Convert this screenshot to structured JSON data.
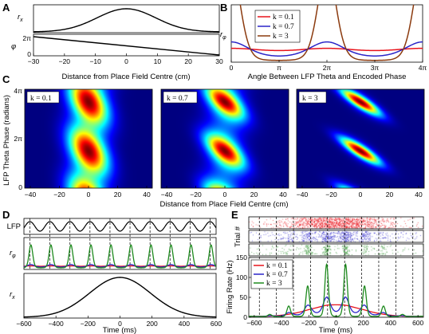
{
  "chart_data": [
    {
      "id": "A",
      "panel_label": "A",
      "type": "line",
      "top_ylabel": "r",
      "top_ylabel_sub": "x",
      "bottom_ylabel": "φ",
      "bottom_yticks": [
        "2π",
        "0"
      ],
      "xlabel": "Distance from Place Field Centre (cm)",
      "xlim": [
        -30,
        30
      ],
      "xticks": [
        "−30",
        "−20",
        "−10",
        "0",
        "10",
        "20",
        "30"
      ],
      "rx_curve": {
        "x": [
          -30,
          -20,
          -10,
          0,
          10,
          20,
          30
        ],
        "y": [
          0.02,
          0.14,
          0.61,
          1.0,
          0.61,
          0.14,
          0.02
        ]
      },
      "phi_curve": {
        "x": [
          -30,
          30
        ],
        "y_radians": [
          6.283,
          0
        ]
      }
    },
    {
      "id": "B",
      "panel_label": "B",
      "type": "line",
      "ylabel": "r",
      "ylabel_sub": "φ",
      "xlabel": "Angle Between LFP Theta and Encoded Phase",
      "xlim": [
        0,
        12.566
      ],
      "xticks": [
        "0",
        "π",
        "2π",
        "3π",
        "4π"
      ],
      "legend_position": "top-left",
      "series": [
        {
          "name": "k = 0.1",
          "color": "#e8131b",
          "kappa": 0.1
        },
        {
          "name": "k = 0.7",
          "color": "#2a24c8",
          "kappa": 0.7
        },
        {
          "name": "k = 3",
          "color": "#8b3a0e",
          "kappa": 3
        }
      ]
    },
    {
      "id": "C",
      "panel_label": "C",
      "type": "heatmap",
      "ylabel": "LFP Theta Phase (radians)",
      "yticks": [
        "4π",
        "2π",
        "0"
      ],
      "xlabel": "Distance from Place Field Centre (cm)",
      "xticks": [
        "−40",
        "−20",
        "0",
        "20",
        "40"
      ],
      "subplots": [
        {
          "label": "k = 0.1",
          "kappa": 0.1
        },
        {
          "label": "k = 0.7",
          "kappa": 0.7
        },
        {
          "label": "k = 3",
          "kappa": 3
        }
      ]
    },
    {
      "id": "D",
      "panel_label": "D",
      "type": "line",
      "xlabel": "Time (ms)",
      "xlim": [
        -600,
        600
      ],
      "xticks": [
        "−600",
        "−400",
        "−200",
        "0",
        "200",
        "400",
        "600"
      ],
      "lfp_ylabel": "LFP",
      "rphi_ylabel": "r",
      "rphi_ylabel_sub": "φ",
      "rx_ylabel": "r",
      "rx_ylabel_sub": "x",
      "theta_cycle_ms": 125,
      "series": [
        {
          "name": "k = 0.1",
          "color": "#e8131b",
          "kappa": 0.1
        },
        {
          "name": "k = 0.7",
          "color": "#2a24c8",
          "kappa": 0.7
        },
        {
          "name": "k = 3",
          "color": "#1e8a1e",
          "kappa": 3
        }
      ]
    },
    {
      "id": "E",
      "panel_label": "E",
      "type": "line",
      "raster_ylabel": "Trial #",
      "ylabel": "Firing Rate (Hz)",
      "ylim": [
        0,
        150
      ],
      "yticks": [
        "0",
        "50",
        "100",
        "150"
      ],
      "xlabel": "Time (ms)",
      "xlim": [
        -600,
        600
      ],
      "xticks": [
        "−600",
        "−400",
        "−200",
        "0",
        "200",
        "400",
        "600"
      ],
      "legend_position": "top-left",
      "series": [
        {
          "name": "k = 0.1",
          "color": "#e8131b",
          "kappa": 0.1,
          "peak_hz": 30
        },
        {
          "name": "k = 0.7",
          "color": "#2a24c8",
          "kappa": 0.7,
          "peak_hz": 52
        },
        {
          "name": "k = 3",
          "color": "#1e8a1e",
          "kappa": 3,
          "peak_hz": 140
        }
      ]
    }
  ]
}
